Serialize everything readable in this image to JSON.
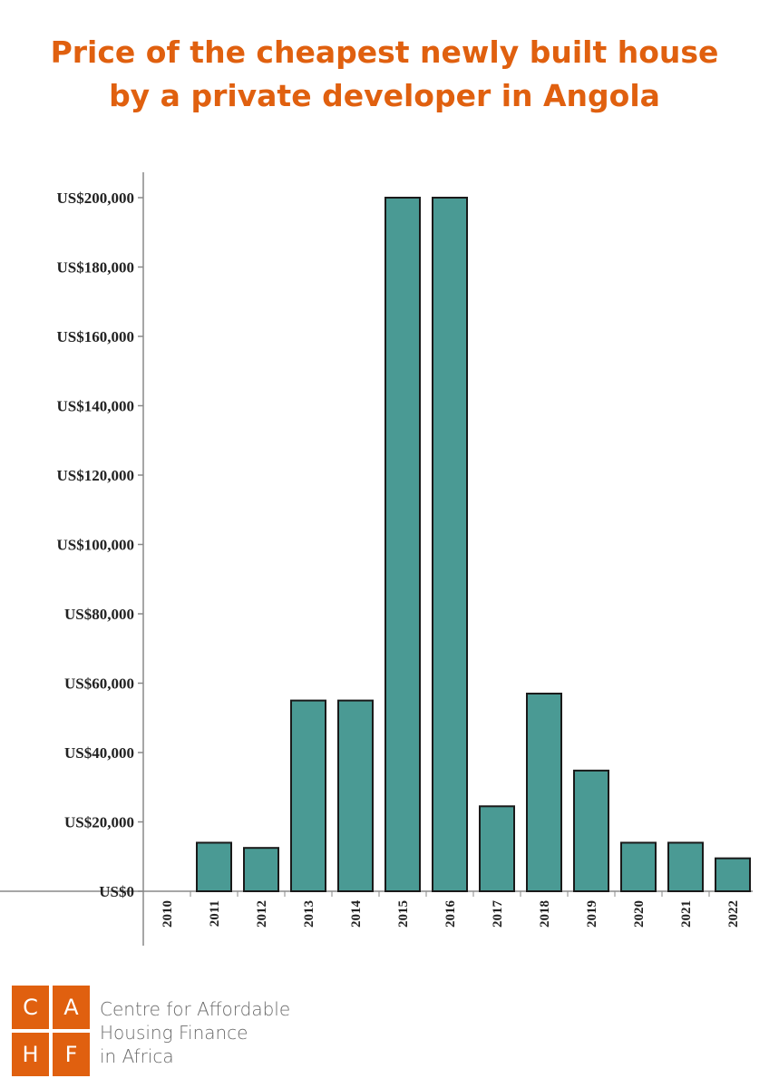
{
  "title_lines": [
    "Price of the cheapest newly built house",
    "by a private developer in Angola"
  ],
  "colors": {
    "title": "#e0600f",
    "bar": "#4a9a94",
    "bar_stroke": "#1a1a1a",
    "logo": "#e0600f"
  },
  "logo": {
    "letters": [
      "C",
      "A",
      "H",
      "F"
    ],
    "lines": [
      "Centre for Affordable",
      "Housing Finance",
      "in Africa"
    ]
  },
  "chart_data": {
    "type": "bar",
    "categories": [
      "2010",
      "2011",
      "2012",
      "2013",
      "2014",
      "2015",
      "2016",
      "2017",
      "2018",
      "2019",
      "2020",
      "2021",
      "2022"
    ],
    "values": [
      0,
      14000,
      12500,
      55000,
      55000,
      200000,
      200000,
      24500,
      57000,
      34800,
      14000,
      14000,
      9500
    ],
    "ylim": [
      0,
      200000
    ],
    "y_ticks": [
      {
        "value": 0,
        "label": "US$0"
      },
      {
        "value": 20000,
        "label": "US$20,000"
      },
      {
        "value": 40000,
        "label": "US$40,000"
      },
      {
        "value": 60000,
        "label": "US$60,000"
      },
      {
        "value": 80000,
        "label": "US$80,000"
      },
      {
        "value": 100000,
        "label": "US$100,000"
      },
      {
        "value": 120000,
        "label": "US$120,000"
      },
      {
        "value": 140000,
        "label": "US$140,000"
      },
      {
        "value": 160000,
        "label": "US$160,000"
      },
      {
        "value": 180000,
        "label": "US$180,000"
      },
      {
        "value": 200000,
        "label": "US$200,000"
      }
    ],
    "xlabel": "",
    "ylabel": "",
    "grid": false,
    "legend": "none"
  }
}
